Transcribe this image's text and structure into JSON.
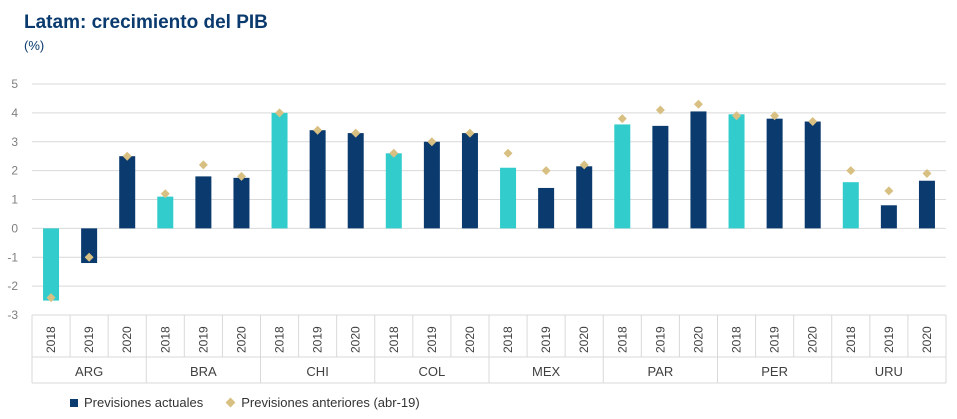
{
  "chart_data": {
    "type": "bar",
    "title": "Latam: crecimiento del PIB",
    "subtitle": "(%)",
    "ylim": [
      -3,
      5
    ],
    "yticks": [
      -3,
      -2,
      -1,
      0,
      1,
      2,
      3,
      4,
      5
    ],
    "grid": true,
    "legend_position": "bottom-left",
    "groups": [
      "ARG",
      "BRA",
      "CHI",
      "COL",
      "MEX",
      "PAR",
      "PER",
      "URU"
    ],
    "years": [
      "2018",
      "2019",
      "2020"
    ],
    "series": [
      {
        "name": "Previsiones actuales",
        "mark": "bar",
        "values": [
          [
            -2.5,
            -1.2,
            2.5
          ],
          [
            1.1,
            1.8,
            1.75
          ],
          [
            4.0,
            3.4,
            3.3
          ],
          [
            2.6,
            3.0,
            3.3
          ],
          [
            2.1,
            1.4,
            2.15
          ],
          [
            3.6,
            3.55,
            4.05
          ],
          [
            3.95,
            3.8,
            3.7
          ],
          [
            1.6,
            0.8,
            1.65
          ]
        ]
      },
      {
        "name": "Previsiones anteriores (abr-19)",
        "mark": "diamond",
        "values": [
          [
            -2.4,
            -1.0,
            2.5
          ],
          [
            1.2,
            2.2,
            1.8
          ],
          [
            4.0,
            3.4,
            3.3
          ],
          [
            2.6,
            3.0,
            3.3
          ],
          [
            2.6,
            2.0,
            2.2
          ],
          [
            3.8,
            4.1,
            4.3
          ],
          [
            3.9,
            3.9,
            3.7
          ],
          [
            2.0,
            1.3,
            1.9
          ]
        ]
      }
    ],
    "colors": {
      "bar_2018": "#33cccc",
      "bar_current": "#0a3a6e",
      "diamond": "#d8c083",
      "grid": "#d9d9d9",
      "axis_text": "#7f7f7f"
    }
  }
}
